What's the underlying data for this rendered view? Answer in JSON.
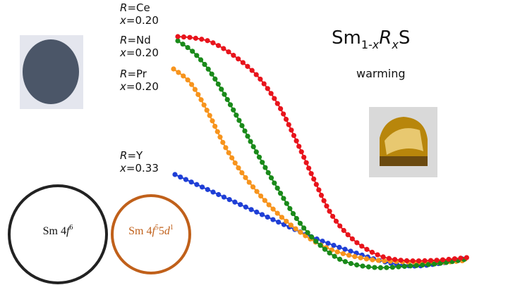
{
  "title": {
    "base": "Sm",
    "sub_a": "1-",
    "sub_b": "x",
    "r": "R",
    "sub_c": "x",
    "end": "S"
  },
  "subtitle": "warming",
  "labels": [
    {
      "r": "R",
      "r_value": "=Ce",
      "x": "x",
      "x_value": "=0.20"
    },
    {
      "r": "R",
      "r_value": "=Nd",
      "x": "x",
      "x_value": "=0.20"
    },
    {
      "r": "R",
      "r_value": "=Pr",
      "x": "x",
      "x_value": "=0.20"
    },
    {
      "r": "R",
      "r_value": "=Y",
      "x": "x",
      "x_value": "=0.33"
    }
  ],
  "states": [
    {
      "prefix": "Sm 4",
      "f": "f",
      "f_sup": "6"
    },
    {
      "prefix": "Sm 4",
      "f": "f",
      "f_sup": "5",
      "mid": "5",
      "d": "d",
      "d_sup": "1"
    }
  ]
}
